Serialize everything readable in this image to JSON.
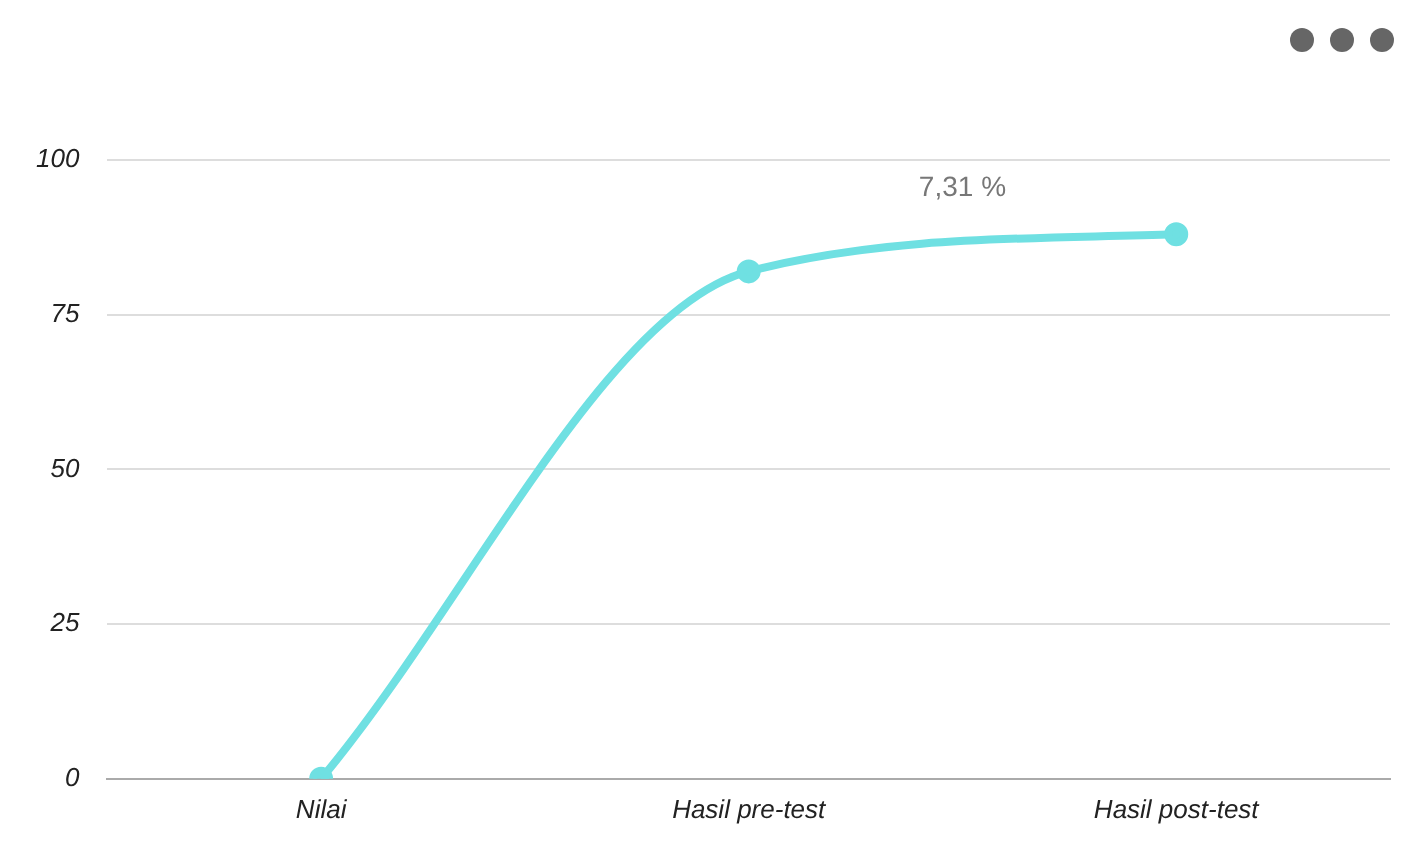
{
  "chart_data": {
    "type": "line",
    "categories": [
      "Nilai",
      "Hasil pre-test",
      "Hasil post-test"
    ],
    "series": [
      {
        "color": "#6fe0e2",
        "values": [
          0,
          82,
          88
        ]
      }
    ],
    "ylim": [
      0,
      100
    ],
    "yticks": [
      0,
      25,
      50,
      75,
      100
    ],
    "grid": "y",
    "legend": false,
    "marker": "circle",
    "annotations": [
      "7,31 %"
    ]
  }
}
